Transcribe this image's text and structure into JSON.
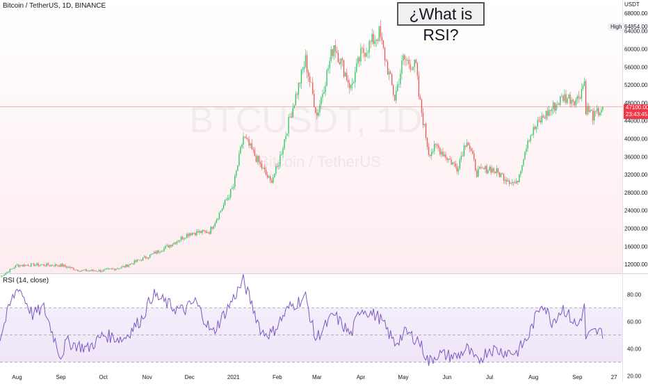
{
  "header": {
    "symbol": "Bitcoin / TetherUS, 1D, BINANCE",
    "banner": "¿What is RSI?",
    "watermark_main": "BTCUSDT, 1D",
    "watermark_sub": "Bitcoin / TetherUS"
  },
  "price_axis": {
    "currency": "USDT",
    "high_label": "High",
    "high_value": "64854.00",
    "last_price": "47100.00",
    "countdown": "23:43:45"
  },
  "rsi_pane": {
    "label": "RSI (14, close)"
  },
  "colors": {
    "up": "#26a69a",
    "down": "#ef5350",
    "up_candle": "#22c55e",
    "rsi_line": "#7e57c2",
    "price_line": "#f23645"
  },
  "chart_data": [
    {
      "type": "candlestick",
      "title": "Bitcoin / TetherUS, 1D, BINANCE",
      "ylabel": "USDT",
      "ylim": [
        10000,
        70000
      ],
      "y_ticks": [
        "68000.00",
        "64000.00",
        "60000.00",
        "56000.00",
        "52000.00",
        "48000.00",
        "44000.00",
        "40000.00",
        "36000.00",
        "32000.00",
        "28000.00",
        "24000.00",
        "20000.00",
        "16000.00",
        "12000.00"
      ],
      "x_ticks": [
        "Aug",
        "Sep",
        "Oct",
        "Nov",
        "Dec",
        "2021",
        "Feb",
        "Mar",
        "Apr",
        "May",
        "Jun",
        "Jul",
        "Aug",
        "Sep",
        "27"
      ],
      "high": 64854,
      "last": 47100,
      "close_approx": [
        {
          "date": "2020-07-20",
          "close": 9200
        },
        {
          "date": "2020-08-01",
          "close": 11800
        },
        {
          "date": "2020-08-15",
          "close": 11900
        },
        {
          "date": "2020-09-01",
          "close": 11800
        },
        {
          "date": "2020-09-15",
          "close": 10600
        },
        {
          "date": "2020-10-01",
          "close": 10600
        },
        {
          "date": "2020-10-15",
          "close": 11400
        },
        {
          "date": "2020-11-01",
          "close": 13700
        },
        {
          "date": "2020-11-15",
          "close": 15900
        },
        {
          "date": "2020-12-01",
          "close": 19000
        },
        {
          "date": "2020-12-15",
          "close": 19300
        },
        {
          "date": "2021-01-01",
          "close": 29300
        },
        {
          "date": "2021-01-08",
          "close": 40500
        },
        {
          "date": "2021-01-15",
          "close": 36800
        },
        {
          "date": "2021-01-27",
          "close": 30400
        },
        {
          "date": "2021-02-01",
          "close": 33500
        },
        {
          "date": "2021-02-10",
          "close": 44900
        },
        {
          "date": "2021-02-21",
          "close": 57500
        },
        {
          "date": "2021-03-01",
          "close": 45200
        },
        {
          "date": "2021-03-13",
          "close": 61200
        },
        {
          "date": "2021-03-25",
          "close": 51300
        },
        {
          "date": "2021-04-01",
          "close": 58700
        },
        {
          "date": "2021-04-14",
          "close": 63500
        },
        {
          "date": "2021-04-25",
          "close": 49000
        },
        {
          "date": "2021-05-01",
          "close": 57800
        },
        {
          "date": "2021-05-10",
          "close": 56000
        },
        {
          "date": "2021-05-12",
          "close": 49500
        },
        {
          "date": "2021-05-19",
          "close": 37000
        },
        {
          "date": "2021-05-25",
          "close": 38200
        },
        {
          "date": "2021-06-08",
          "close": 33500
        },
        {
          "date": "2021-06-15",
          "close": 40100
        },
        {
          "date": "2021-06-22",
          "close": 32500
        },
        {
          "date": "2021-07-01",
          "close": 33500
        },
        {
          "date": "2021-07-20",
          "close": 29800
        },
        {
          "date": "2021-07-28",
          "close": 40000
        },
        {
          "date": "2021-08-07",
          "close": 44500
        },
        {
          "date": "2021-08-22",
          "close": 49300
        },
        {
          "date": "2021-09-01",
          "close": 48800
        },
        {
          "date": "2021-09-06",
          "close": 52700
        },
        {
          "date": "2021-09-07",
          "close": 46800
        },
        {
          "date": "2021-09-13",
          "close": 44900
        },
        {
          "date": "2021-09-19",
          "close": 47100
        }
      ]
    },
    {
      "type": "line",
      "title": "RSI (14, close)",
      "ylim": [
        15,
        95
      ],
      "y_ticks": [
        "80.00",
        "60.00",
        "40.00",
        "20.00"
      ],
      "bands": [
        30,
        50,
        70
      ],
      "x": [
        "2020-07-20",
        "2020-07-28",
        "2020-08-02",
        "2020-08-12",
        "2020-08-20",
        "2020-09-01",
        "2020-09-05",
        "2020-09-20",
        "2020-10-01",
        "2020-10-15",
        "2020-10-28",
        "2020-11-05",
        "2020-11-20",
        "2020-11-27",
        "2020-12-05",
        "2020-12-17",
        "2020-12-28",
        "2021-01-08",
        "2021-01-21",
        "2021-01-28",
        "2021-02-09",
        "2021-02-21",
        "2021-02-28",
        "2021-03-13",
        "2021-03-25",
        "2021-04-01",
        "2021-04-14",
        "2021-04-25",
        "2021-05-03",
        "2021-05-12",
        "2021-05-19",
        "2021-05-25",
        "2021-06-08",
        "2021-06-15",
        "2021-06-22",
        "2021-07-01",
        "2021-07-10",
        "2021-07-20",
        "2021-07-28",
        "2021-08-07",
        "2021-08-14",
        "2021-08-22",
        "2021-09-01",
        "2021-09-06",
        "2021-09-07",
        "2021-09-13",
        "2021-09-19"
      ],
      "values": [
        48,
        75,
        86,
        65,
        70,
        34,
        45,
        40,
        50,
        47,
        62,
        80,
        70,
        68,
        75,
        51,
        70,
        90,
        52,
        51,
        70,
        78,
        47,
        65,
        50,
        70,
        63,
        44,
        52,
        46,
        30,
        36,
        34,
        40,
        30,
        40,
        38,
        37,
        48,
        75,
        60,
        70,
        56,
        70,
        48,
        52,
        52
      ]
    }
  ]
}
